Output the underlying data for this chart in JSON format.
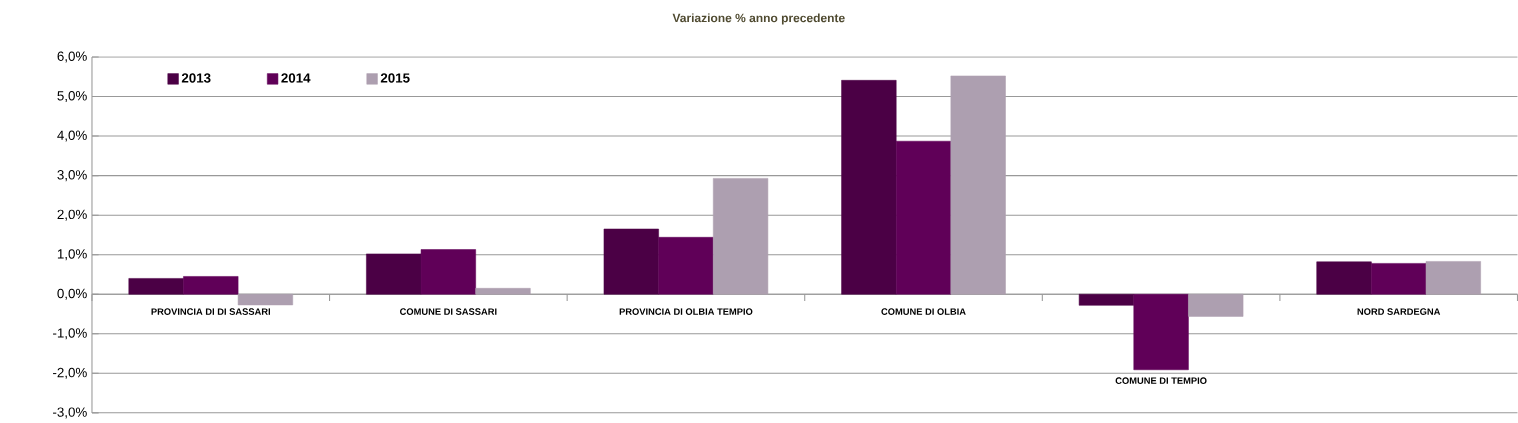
{
  "chart_data": {
    "type": "bar",
    "title": "Variazione % anno precedente",
    "categories": [
      "PROVINCIA DI DI SASSARI",
      "COMUNE DI SASSARI",
      "PROVINCIA DI OLBIA TEMPIO",
      "COMUNE DI OLBIA",
      "COMUNE DI TEMPIO",
      "NORD SARDEGNA"
    ],
    "series": [
      {
        "name": "2013",
        "color": "#4b0045",
        "values": [
          0.4,
          1.02,
          1.65,
          5.41,
          -0.28,
          0.82
        ]
      },
      {
        "name": "2014",
        "color": "#600058",
        "values": [
          0.45,
          1.13,
          1.44,
          3.87,
          -1.91,
          0.78
        ]
      },
      {
        "name": "2015",
        "color": "#ad9fb0",
        "values": [
          -0.27,
          0.15,
          2.93,
          5.52,
          -0.56,
          0.83
        ]
      }
    ],
    "ylim": [
      -3,
      6
    ],
    "yticks": [
      {
        "value": -3,
        "label": "-3,0%"
      },
      {
        "value": -2,
        "label": "-2,0%"
      },
      {
        "value": -1,
        "label": "-1,0%"
      },
      {
        "value": 0,
        "label": "0,0%"
      },
      {
        "value": 1,
        "label": "1,0%"
      },
      {
        "value": 2,
        "label": "2,0%"
      },
      {
        "value": 3,
        "label": "3,0%"
      },
      {
        "value": 4,
        "label": "4,0%"
      },
      {
        "value": 5,
        "label": "5,0%"
      },
      {
        "value": 6,
        "label": "6,0%"
      }
    ],
    "grid": "y",
    "legend": "top left"
  }
}
